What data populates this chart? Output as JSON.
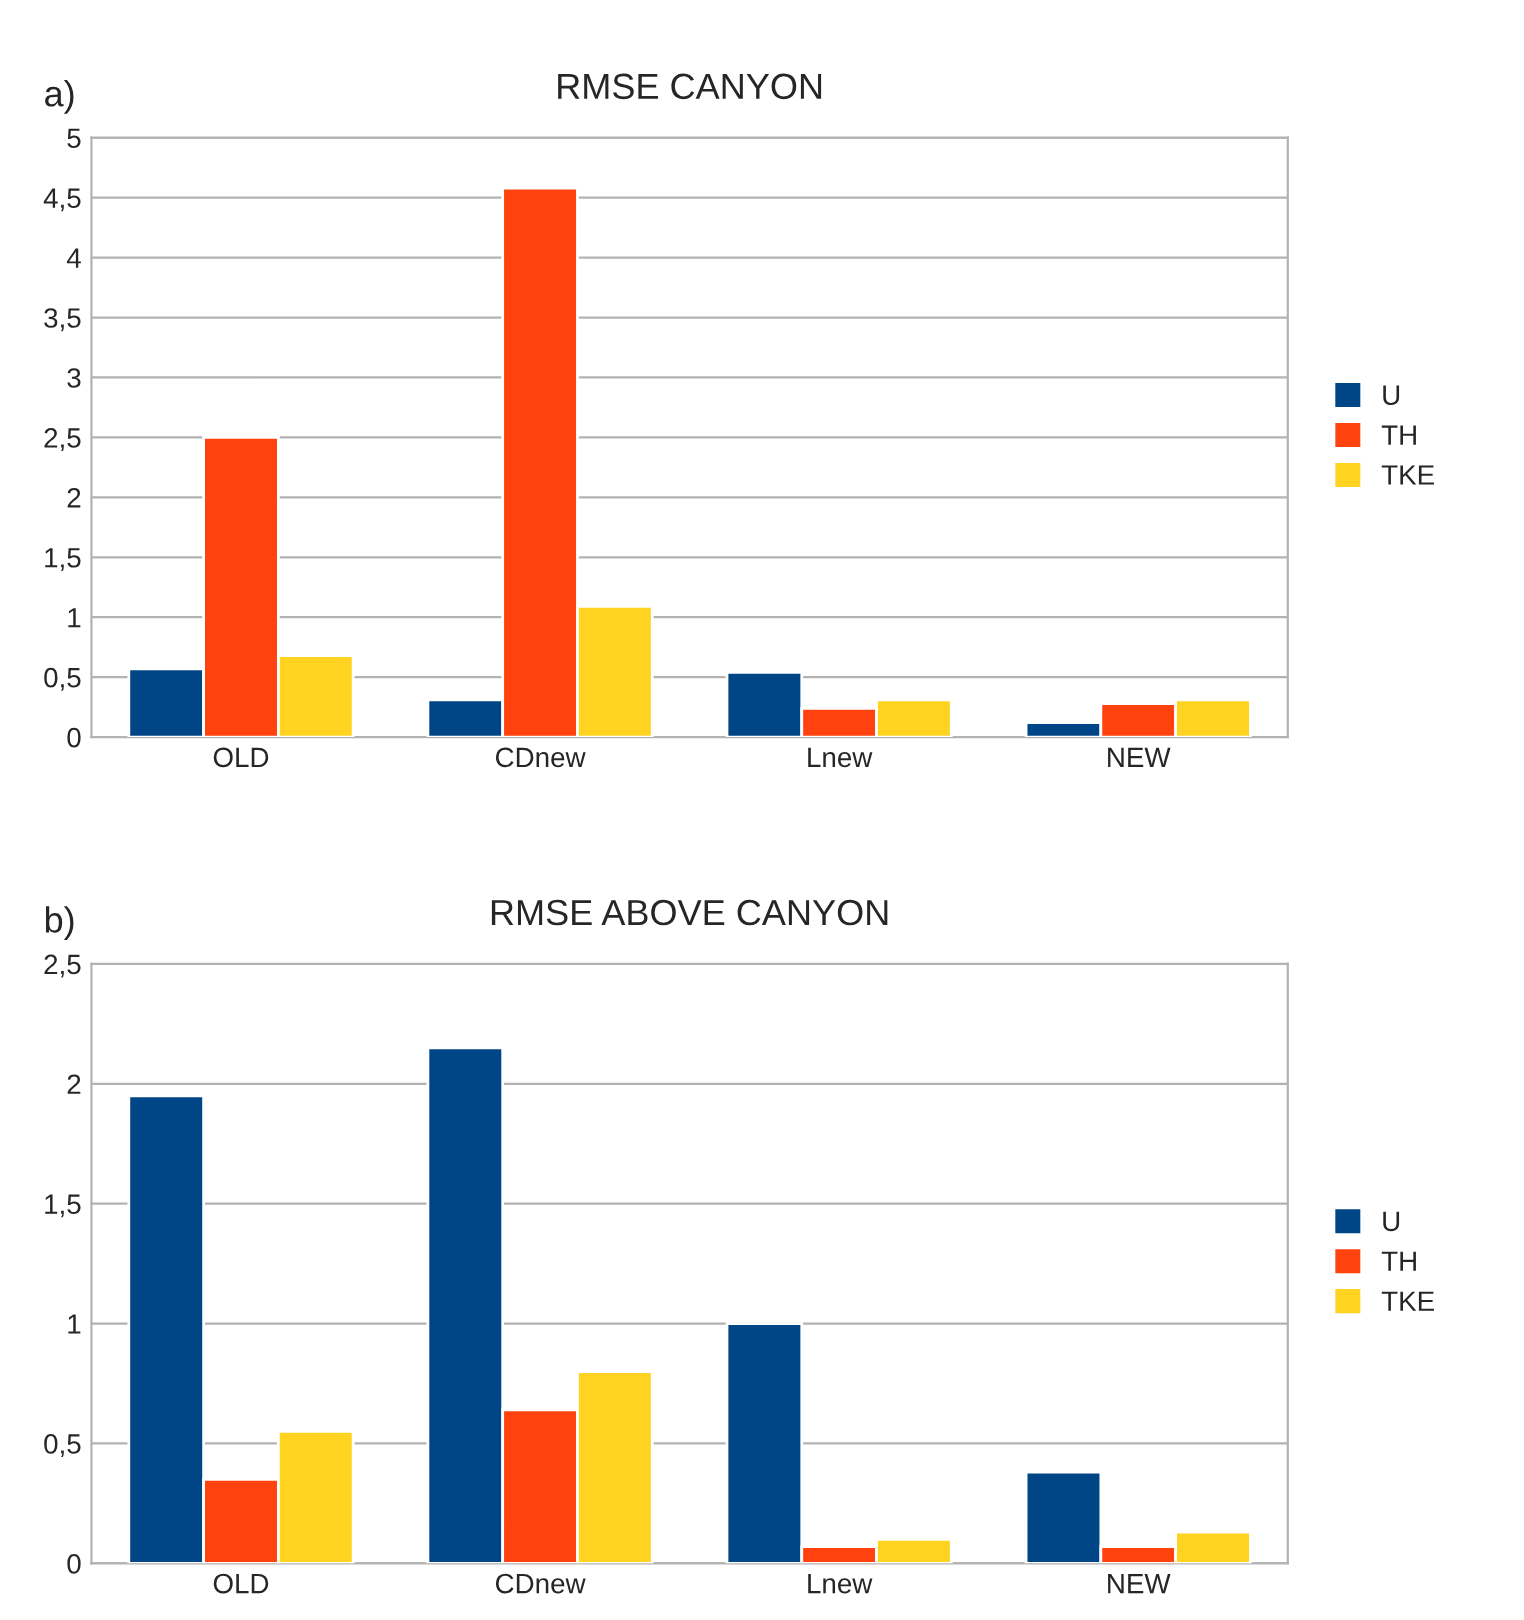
{
  "chart_data": [
    {
      "type": "bar",
      "title": "RMSE CANYON",
      "annotations": [
        "a)"
      ],
      "categories": [
        "OLD",
        "CDnew",
        "Lnew",
        "NEW"
      ],
      "series": [
        {
          "name": "U",
          "color": "#004586",
          "values": [
            0.57,
            0.31,
            0.54,
            0.12
          ]
        },
        {
          "name": "TH",
          "color": "#ff420e",
          "values": [
            2.5,
            4.58,
            0.24,
            0.28
          ]
        },
        {
          "name": "TKE",
          "color": "#ffd320",
          "values": [
            0.68,
            1.09,
            0.31,
            0.31
          ]
        }
      ],
      "ylim": [
        0,
        5
      ],
      "yticks": [
        0,
        {
          "value": 0.5,
          "label": "0,5"
        },
        1,
        {
          "value": 1.5,
          "label": "1,5"
        },
        2,
        {
          "value": 2.5,
          "label": "2,5"
        },
        3,
        {
          "value": 3.5,
          "label": "3,5"
        },
        4,
        {
          "value": 4.5,
          "label": "4,5"
        },
        5
      ],
      "grid": "y",
      "legend": "right"
    },
    {
      "type": "bar",
      "title": "RMSE ABOVE CANYON",
      "annotations": [
        "b)"
      ],
      "categories": [
        "OLD",
        "CDnew",
        "Lnew",
        "NEW"
      ],
      "series": [
        {
          "name": "U",
          "color": "#004586",
          "values": [
            1.95,
            2.15,
            1.0,
            0.38
          ]
        },
        {
          "name": "TH",
          "color": "#ff420e",
          "values": [
            0.35,
            0.64,
            0.07,
            0.07
          ]
        },
        {
          "name": "TKE",
          "color": "#ffd320",
          "values": [
            0.55,
            0.8,
            0.1,
            0.13
          ]
        }
      ],
      "ylim": [
        0,
        2.5
      ],
      "yticks": [
        0,
        {
          "value": 0.5,
          "label": "0,5"
        },
        1,
        {
          "value": 1.5,
          "label": "1,5"
        },
        2,
        {
          "value": 2.5,
          "label": "2,5"
        }
      ],
      "grid": "y",
      "legend": "right"
    }
  ]
}
